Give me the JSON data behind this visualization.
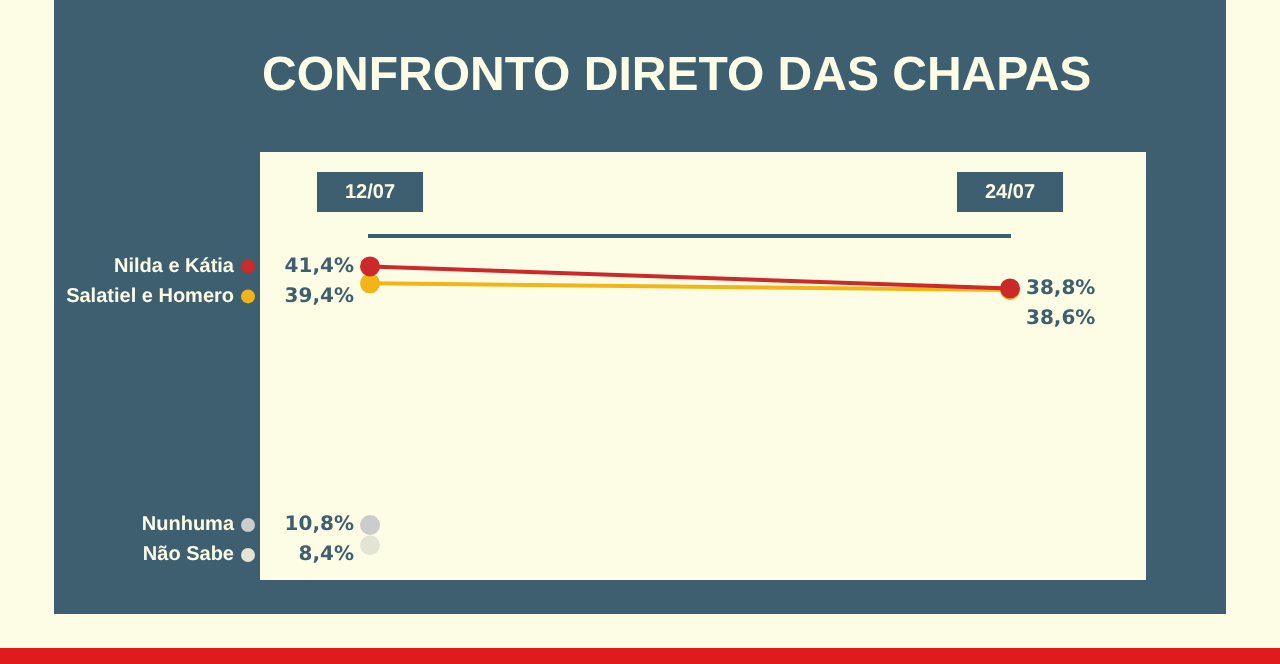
{
  "chart_data": {
    "type": "line",
    "title": "CONFRONTO DIRETO DAS CHAPAS",
    "categories": [
      "12/07",
      "24/07"
    ],
    "marker": "circle",
    "legend": "left",
    "series": [
      {
        "name": "Nilda e Kátia",
        "color": "#cc2a2a",
        "values": [
          41.4,
          38.8
        ],
        "value_labels": [
          "41,4%",
          "38,8%"
        ]
      },
      {
        "name": "Salatiel e Homero",
        "color": "#f2b416",
        "values": [
          39.4,
          38.6
        ],
        "value_labels": [
          "39,4%",
          "38,6%"
        ]
      },
      {
        "name": "Nunhuma",
        "color": "#cccccc",
        "values": [
          10.8,
          null
        ],
        "value_labels": [
          "10,8%",
          null
        ]
      },
      {
        "name": "Não Sabe",
        "color": "#e4e4d4",
        "values": [
          8.4,
          null
        ],
        "value_labels": [
          "8,4%",
          null
        ]
      }
    ]
  }
}
